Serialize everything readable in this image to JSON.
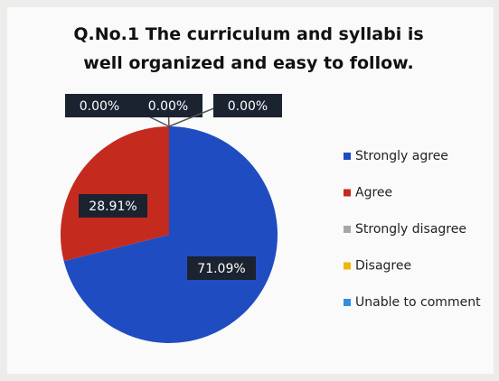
{
  "chart_data": {
    "type": "pie",
    "title": "Q.No.1 The curriculum and syllabi is well organized and easy to follow.",
    "categories": [
      "Strongly agree",
      "Agree",
      "Strongly disagree",
      "Disagree",
      "Unable to comment"
    ],
    "values": [
      71.09,
      28.91,
      0,
      0,
      0
    ],
    "value_labels": [
      "71.09%",
      "28.91%",
      "0.00%",
      "0.00%",
      "0.00%"
    ],
    "colors": [
      "#1f4cc0",
      "#c42a1e",
      "#a6a6a6",
      "#eeb800",
      "#2f8fe0"
    ],
    "legend": "right"
  }
}
